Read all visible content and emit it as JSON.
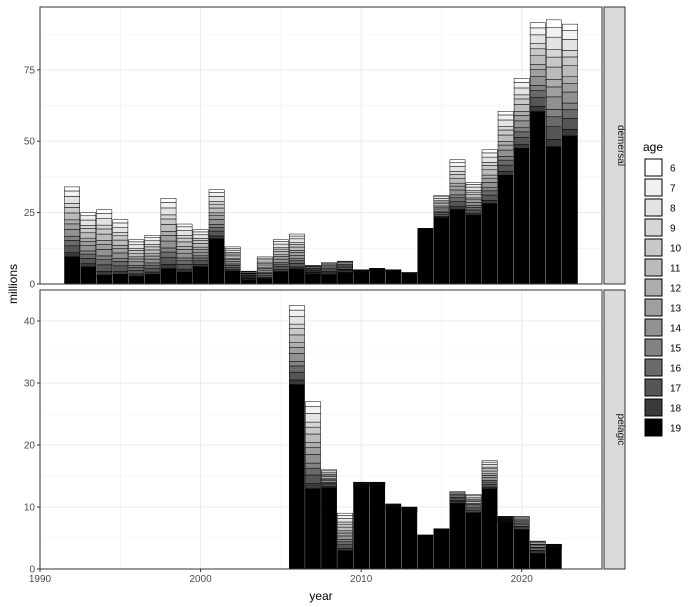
{
  "chart_data": {
    "type": "bar",
    "stacked": true,
    "xlabel": "year",
    "ylabel": "millions",
    "xlim": [
      1990,
      2025
    ],
    "x_ticks": [
      1990,
      2000,
      2010,
      2020
    ],
    "grid": true,
    "legend": {
      "title": "age",
      "position": "right",
      "entries": [
        "6",
        "7",
        "8",
        "9",
        "10",
        "11",
        "12",
        "13",
        "14",
        "15",
        "16",
        "17",
        "18",
        "19"
      ],
      "colors": [
        "#ffffff",
        "#f1f1f1",
        "#e3e3e3",
        "#d6d6d6",
        "#c8c8c8",
        "#bbbbbb",
        "#adadad",
        "#9f9f9f",
        "#919191",
        "#838383",
        "#6a6a6a",
        "#555555",
        "#3a3a3a",
        "#000000"
      ]
    },
    "facets": [
      {
        "name": "demersal",
        "ylim": [
          0,
          97
        ],
        "y_ticks": [
          0,
          25,
          50,
          75
        ],
        "years": [
          1992,
          1993,
          1994,
          1995,
          1996,
          1997,
          1998,
          1999,
          2000,
          2001,
          2002,
          2003,
          2004,
          2005,
          2006,
          2007,
          2008,
          2009,
          2010,
          2011,
          2012,
          2013,
          2014,
          2015,
          2016,
          2017,
          2018,
          2019,
          2020,
          2021,
          2022,
          2023
        ],
        "totals": [
          34,
          25,
          26,
          22.5,
          15.5,
          17,
          30,
          21,
          19,
          33,
          13,
          4.5,
          9.5,
          15.5,
          17.5,
          6.5,
          7.5,
          8,
          5,
          5.5,
          5,
          4,
          19.5,
          31,
          43.5,
          35.5,
          47,
          60.5,
          72,
          91.5,
          92.5,
          91
        ],
        "black_share": [
          0.28,
          0.24,
          0.12,
          0.15,
          0.18,
          0.2,
          0.18,
          0.2,
          0.32,
          0.48,
          0.35,
          0.3,
          0.2,
          0.28,
          0.3,
          0.5,
          0.42,
          0.5,
          0.8,
          0.85,
          0.9,
          0.95,
          1.0,
          0.75,
          0.6,
          0.68,
          0.6,
          0.63,
          0.66,
          0.66,
          0.52,
          0.57
        ]
      },
      {
        "name": "pelagic",
        "ylim": [
          0,
          45
        ],
        "y_ticks": [
          0,
          10,
          20,
          30,
          40
        ],
        "years": [
          1992,
          1993,
          1994,
          1995,
          1996,
          1997,
          1998,
          1999,
          2000,
          2001,
          2002,
          2003,
          2004,
          2005,
          2006,
          2007,
          2008,
          2009,
          2010,
          2011,
          2012,
          2013,
          2014,
          2015,
          2016,
          2017,
          2018,
          2019,
          2020,
          2021,
          2022,
          2023
        ],
        "totals": [
          0,
          0,
          0,
          0,
          0,
          0,
          0,
          0,
          0,
          0,
          0,
          0,
          0,
          0,
          42.5,
          27,
          16,
          9,
          14,
          14,
          10.5,
          10,
          5.5,
          6.5,
          12.5,
          12,
          17.5,
          8.5,
          8.5,
          4.5,
          4,
          0
        ],
        "black_share": [
          1,
          1,
          1,
          1,
          1,
          1,
          1,
          1,
          1,
          1,
          1,
          1,
          1,
          1,
          0.7,
          0.48,
          0.82,
          0.33,
          0.93,
          0.96,
          0.92,
          0.92,
          1.0,
          1.0,
          0.84,
          0.75,
          0.74,
          0.88,
          0.74,
          0.55,
          0.8,
          1
        ]
      }
    ]
  }
}
